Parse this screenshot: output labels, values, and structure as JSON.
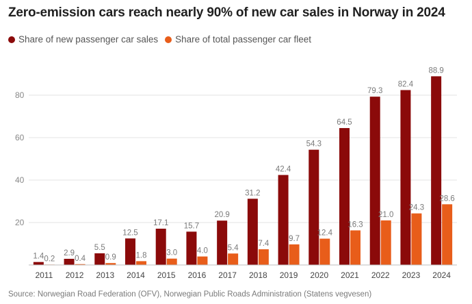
{
  "header": {
    "title": "Zero-emission cars reach nearly 90% of new car sales in Norway in 2024"
  },
  "footer": {
    "source": "Source: Norwegian Road Federation (OFV), Norwegian Public Roads Administration (Statens vegvesen)"
  },
  "chart_data": {
    "type": "bar",
    "title": "Zero-emission cars reach nearly 90% of new car sales in Norway in 2024",
    "xlabel": "",
    "ylabel": "",
    "ylim": [
      0,
      90
    ],
    "yticks": [
      20,
      40,
      60,
      80
    ],
    "grid": true,
    "legend_position": "top-left",
    "categories": [
      "2011",
      "2012",
      "2013",
      "2014",
      "2015",
      "2016",
      "2017",
      "2018",
      "2019",
      "2020",
      "2021",
      "2022",
      "2023",
      "2024"
    ],
    "series": [
      {
        "name": "Share of new passenger car sales",
        "color": "#8b0a0a",
        "values": [
          1.4,
          2.9,
          5.5,
          12.5,
          17.1,
          15.7,
          20.9,
          31.2,
          42.4,
          54.3,
          64.5,
          79.3,
          82.4,
          88.9
        ]
      },
      {
        "name": "Share of total passenger car fleet",
        "color": "#e85d1a",
        "values": [
          0.2,
          0.4,
          0.9,
          1.8,
          3.0,
          4.0,
          5.4,
          7.4,
          9.7,
          12.4,
          16.3,
          21.0,
          24.3,
          28.6
        ]
      }
    ]
  }
}
